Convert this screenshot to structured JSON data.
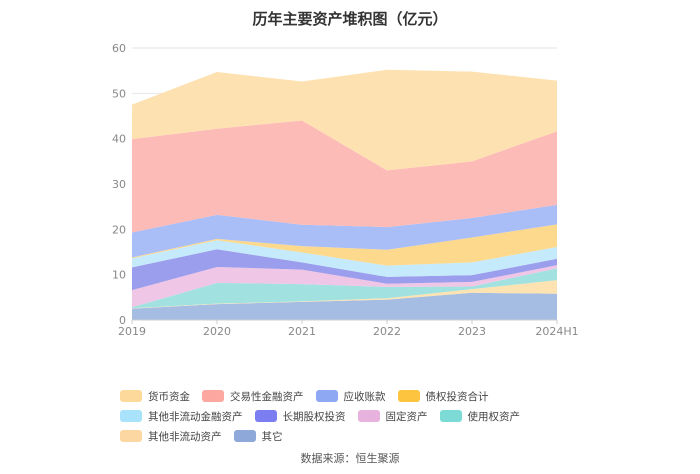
{
  "chart_data": {
    "type": "area",
    "stacked": true,
    "title": "历年主要资产堆积图（亿元）",
    "x": [
      "2019",
      "2020",
      "2021",
      "2022",
      "2023",
      "2024H1"
    ],
    "y_ticks": [
      "0",
      "10",
      "20",
      "30",
      "40",
      "50",
      "60"
    ],
    "ylim": [
      0,
      60
    ],
    "series": [
      {
        "name": "其它",
        "color": "#a5bde3",
        "values": [
          2.5,
          3.5,
          4.0,
          4.5,
          6.0,
          5.8
        ]
      },
      {
        "name": "其他非流动资产",
        "color": "#fde3b1",
        "values": [
          0.1,
          0.1,
          0.1,
          0.3,
          0.8,
          3.0
        ]
      },
      {
        "name": "使用权资产",
        "color": "#a1e2e0",
        "values": [
          0.2,
          4.6,
          3.8,
          2.5,
          0.6,
          2.6
        ]
      },
      {
        "name": "固定资产",
        "color": "#efc6e5",
        "values": [
          3.8,
          3.5,
          3.2,
          0.7,
          1.0,
          0.7
        ]
      },
      {
        "name": "长期股权投资",
        "color": "#9b9ded",
        "values": [
          5.0,
          3.9,
          1.6,
          1.5,
          1.5,
          1.4
        ]
      },
      {
        "name": "其他非流动金融资产",
        "color": "#c4eafb",
        "values": [
          2.0,
          2.0,
          2.2,
          2.5,
          2.8,
          2.6
        ]
      },
      {
        "name": "债权投资合计",
        "color": "#fdd98e",
        "values": [
          0.2,
          0.3,
          1.4,
          3.5,
          5.5,
          5.0
        ]
      },
      {
        "name": "应收账款",
        "color": "#a9bdf7",
        "values": [
          5.5,
          5.3,
          4.7,
          5.0,
          4.3,
          4.3
        ]
      },
      {
        "name": "交易性金融资产",
        "color": "#fdbbb7",
        "values": [
          20.6,
          19.0,
          23.0,
          12.5,
          12.5,
          16.2
        ]
      },
      {
        "name": "货币资金",
        "color": "#fee1b0",
        "values": [
          7.6,
          12.5,
          8.6,
          22.2,
          19.8,
          11.2
        ]
      }
    ],
    "legend": [
      {
        "name": "货币资金",
        "color": "#fdd99b"
      },
      {
        "name": "交易性金融资产",
        "color": "#fca79f"
      },
      {
        "name": "应收账款",
        "color": "#8fa8f4"
      },
      {
        "name": "债权投资合计",
        "color": "#fcc43f"
      },
      {
        "name": "其他非流动金融资产",
        "color": "#a8e2fb"
      },
      {
        "name": "长期股权投资",
        "color": "#7b7ef0"
      },
      {
        "name": "固定资产",
        "color": "#e7b2dd"
      },
      {
        "name": "使用权资产",
        "color": "#7cdbd6"
      },
      {
        "name": "其他非流动资产",
        "color": "#fcd7a1"
      },
      {
        "name": "其它",
        "color": "#8ea9d9"
      }
    ],
    "legend_position": "bottom"
  },
  "source": "数据来源：恒生聚源"
}
